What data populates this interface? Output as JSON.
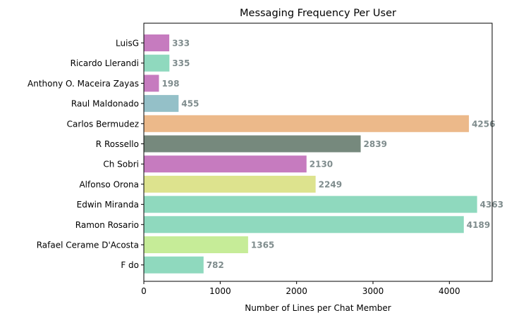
{
  "chart_data": {
    "type": "bar",
    "orientation": "horizontal",
    "title": "Messaging Frequency Per User",
    "xlabel": "Number of Lines per Chat Member",
    "ylabel": "",
    "xlim": [
      0,
      4560
    ],
    "xticks": [
      0,
      1000,
      2000,
      3000,
      4000
    ],
    "grid": false,
    "categories": [
      "LuisG",
      "Ricardo Llerandi",
      "Anthony O. Maceira Zayas",
      "Raul Maldonado",
      "Carlos Bermudez",
      "R Rossello",
      "Ch Sobri",
      "Alfonso Orona",
      "Edwin Miranda",
      "Ramon Rosario",
      "Rafael Cerame D'Acosta",
      "F do"
    ],
    "values": [
      333,
      335,
      198,
      455,
      4256,
      2839,
      2130,
      2249,
      4363,
      4189,
      1365,
      782
    ],
    "value_labels": [
      "333",
      "335",
      "198",
      "455",
      "4256",
      "2839",
      "2130",
      "2249",
      "4363",
      "4189",
      "1365",
      "782"
    ],
    "colors": [
      "#c67bbf",
      "#8fd9be",
      "#c67bbf",
      "#94c0c8",
      "#ecb98a",
      "#76897d",
      "#c67bbf",
      "#dde38e",
      "#8fd9be",
      "#8fd9be",
      "#c6ec98",
      "#8fd9be"
    ],
    "value_label_color": "#7f8c8d"
  }
}
